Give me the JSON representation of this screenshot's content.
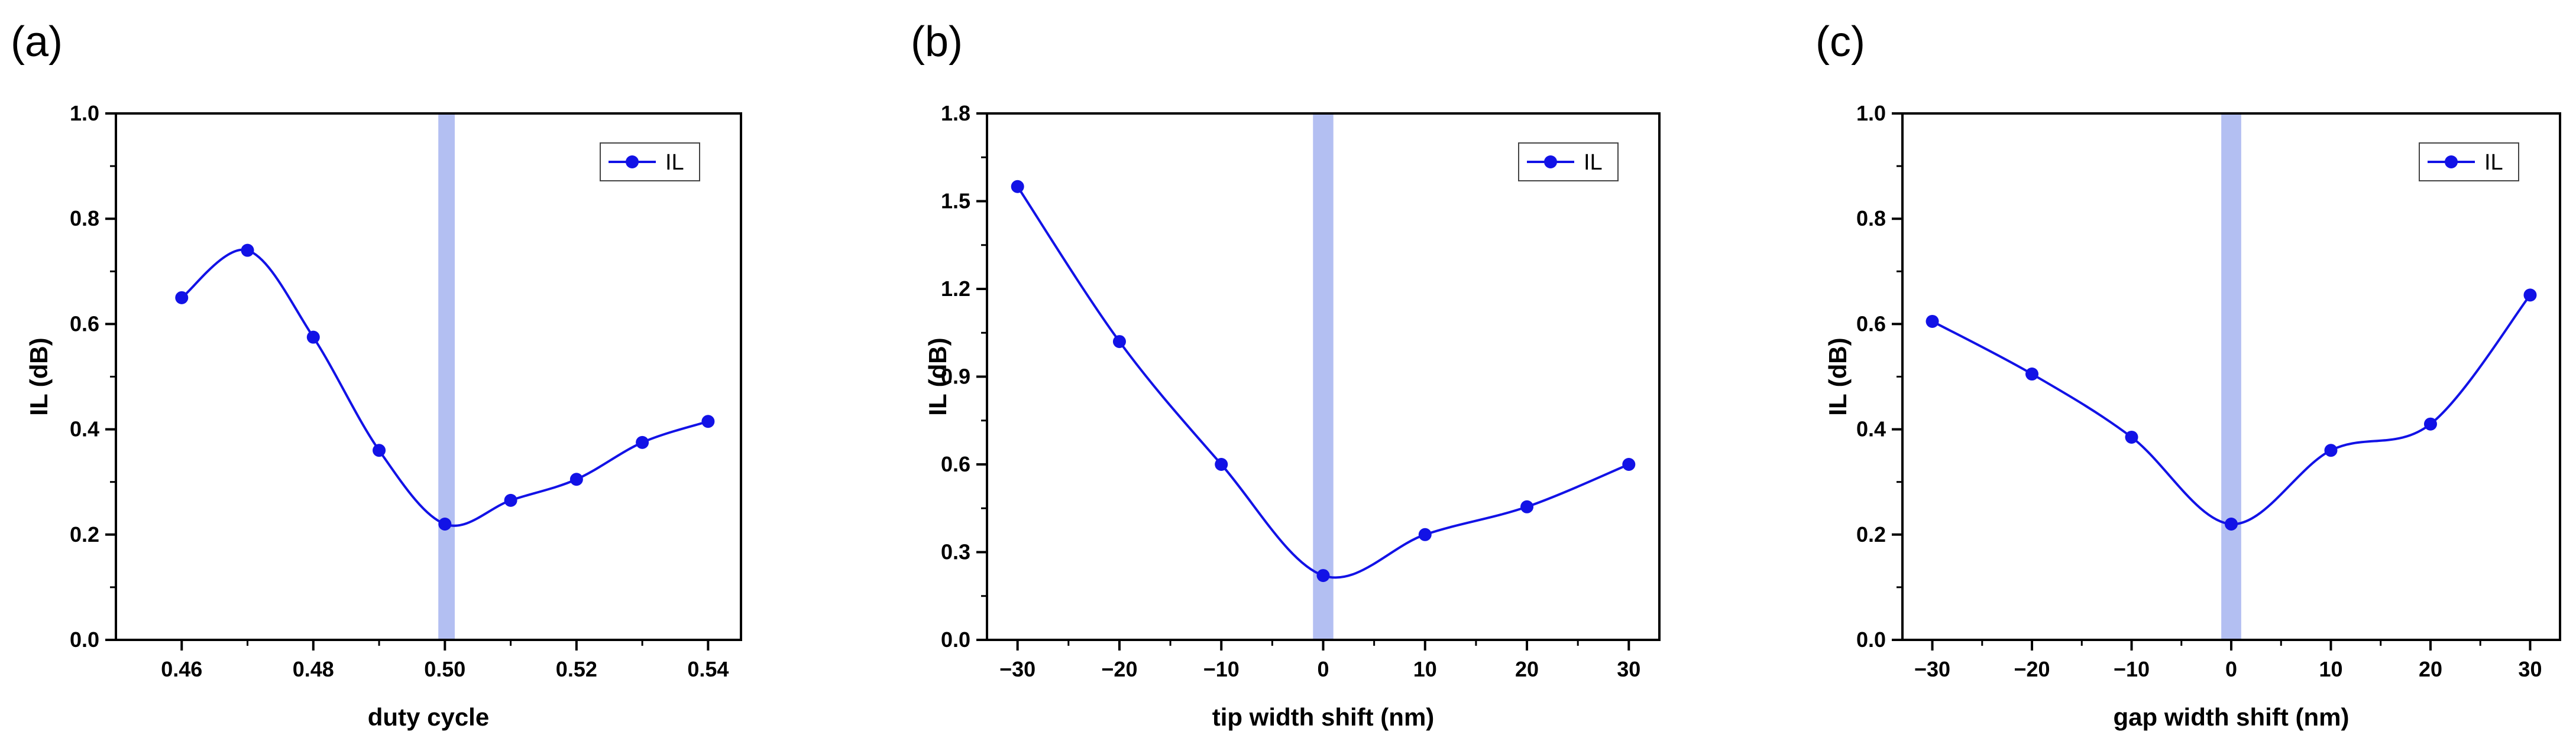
{
  "colors": {
    "series": "#1212e6",
    "band": "#b3bff2"
  },
  "chart_data": [
    {
      "type": "line",
      "panel_label": "(a)",
      "title": "",
      "xlabel": "duty cycle",
      "ylabel": "IL (dB)",
      "xlim": [
        0.45,
        0.545
      ],
      "ylim": [
        0.0,
        1.0
      ],
      "xticks": [
        0.46,
        0.48,
        0.5,
        0.52,
        0.54
      ],
      "xtick_labels": [
        "0.46",
        "0.48",
        "0.50",
        "0.52",
        "0.54"
      ],
      "yticks": [
        0.0,
        0.2,
        0.4,
        0.6,
        0.8,
        1.0
      ],
      "ytick_labels": [
        "0.0",
        "0.2",
        "0.4",
        "0.6",
        "0.8",
        "1.0"
      ],
      "highlight_band": [
        0.499,
        0.5015
      ],
      "legend_position": "top-right",
      "series": [
        {
          "name": "IL",
          "x": [
            0.46,
            0.47,
            0.48,
            0.49,
            0.5,
            0.51,
            0.52,
            0.53,
            0.54
          ],
          "y": [
            0.65,
            0.74,
            0.575,
            0.36,
            0.22,
            0.265,
            0.305,
            0.375,
            0.415
          ]
        }
      ]
    },
    {
      "type": "line",
      "panel_label": "(b)",
      "title": "",
      "xlabel": "tip width shift (nm)",
      "ylabel": "IL (dB)",
      "xlim": [
        -33,
        33
      ],
      "ylim": [
        0.0,
        1.8
      ],
      "xticks": [
        -30,
        -20,
        -10,
        0,
        10,
        20,
        30
      ],
      "xtick_labels": [
        "−30",
        "−20",
        "−10",
        "0",
        "10",
        "20",
        "30"
      ],
      "yticks": [
        0.0,
        0.3,
        0.6,
        0.9,
        1.2,
        1.5,
        1.8
      ],
      "ytick_labels": [
        "0.0",
        "0.3",
        "0.6",
        "0.9",
        "1.2",
        "1.5",
        "1.8"
      ],
      "highlight_band": [
        -1,
        1
      ],
      "legend_position": "top-right",
      "series": [
        {
          "name": "IL",
          "x": [
            -30,
            -20,
            -10,
            0,
            10,
            20,
            30
          ],
          "y": [
            1.55,
            1.02,
            0.6,
            0.22,
            0.36,
            0.455,
            0.6
          ]
        }
      ]
    },
    {
      "type": "line",
      "panel_label": "(c)",
      "title": "",
      "xlabel": "gap width shift (nm)",
      "ylabel": "IL (dB)",
      "xlim": [
        -33,
        33
      ],
      "ylim": [
        0.0,
        1.0
      ],
      "xticks": [
        -30,
        -20,
        -10,
        0,
        10,
        20,
        30
      ],
      "xtick_labels": [
        "−30",
        "−20",
        "−10",
        "0",
        "10",
        "20",
        "30"
      ],
      "yticks": [
        0.0,
        0.2,
        0.4,
        0.6,
        0.8,
        1.0
      ],
      "ytick_labels": [
        "0.0",
        "0.2",
        "0.4",
        "0.6",
        "0.8",
        "1.0"
      ],
      "highlight_band": [
        -1,
        1
      ],
      "legend_position": "top-right",
      "series": [
        {
          "name": "IL",
          "x": [
            -30,
            -20,
            -10,
            0,
            10,
            20,
            30
          ],
          "y": [
            0.605,
            0.505,
            0.385,
            0.22,
            0.36,
            0.41,
            0.655
          ]
        }
      ]
    }
  ]
}
